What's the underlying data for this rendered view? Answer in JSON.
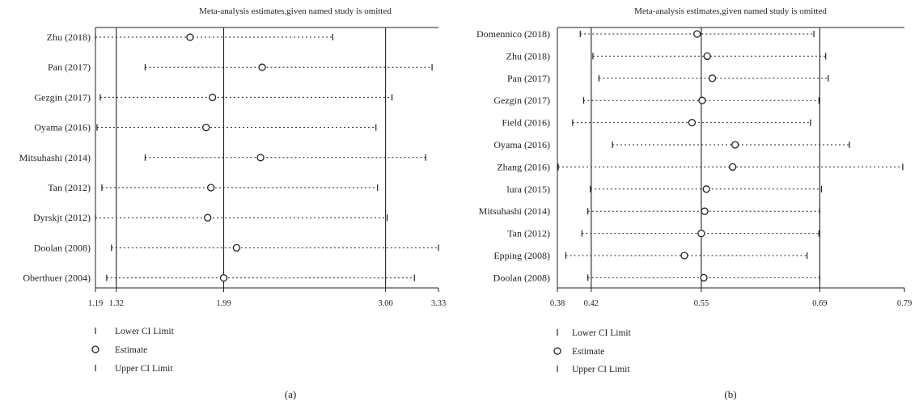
{
  "chart_data": [
    {
      "type": "forest",
      "panel_label": "(a)",
      "title": "Meta-analysis estimates,given named study is omitted",
      "xlim": [
        1.19,
        3.33
      ],
      "ticks": [
        "1.19",
        "1.32",
        "1.99",
        "3.00",
        "3.33"
      ],
      "tick_values": [
        1.19,
        1.32,
        1.99,
        3.0,
        3.33
      ],
      "reference_lines": [
        1.32,
        1.99,
        3.0
      ],
      "studies": [
        {
          "name": "Zhu (2018)",
          "lower": 1.19,
          "estimate": 1.78,
          "upper": 2.67
        },
        {
          "name": "Pan (2017)",
          "lower": 1.5,
          "estimate": 2.23,
          "upper": 3.29
        },
        {
          "name": "Gezgin (2017)",
          "lower": 1.22,
          "estimate": 1.92,
          "upper": 3.04
        },
        {
          "name": "Oyama (2016)",
          "lower": 1.2,
          "estimate": 1.88,
          "upper": 2.94
        },
        {
          "name": "Mitsuhashi (2014)",
          "lower": 1.5,
          "estimate": 2.22,
          "upper": 3.25
        },
        {
          "name": "Tan (2012)",
          "lower": 1.23,
          "estimate": 1.91,
          "upper": 2.95
        },
        {
          "name": "Dyrskjt (2012)",
          "lower": 1.19,
          "estimate": 1.89,
          "upper": 3.01
        },
        {
          "name": "Doolan (2008)",
          "lower": 1.29,
          "estimate": 2.07,
          "upper": 3.33
        },
        {
          "name": "Oberthuer (2004)",
          "lower": 1.26,
          "estimate": 1.99,
          "upper": 3.18
        }
      ],
      "legend": [
        "Lower CI Limit",
        "Estimate",
        "Upper CI Limit"
      ]
    },
    {
      "type": "forest",
      "panel_label": "(b)",
      "title": "Meta-analysis estimates,given named study is omitted",
      "xlim": [
        0.38,
        0.79
      ],
      "ticks": [
        "0.38",
        "0.42",
        "0.55",
        "0.69",
        "0.79"
      ],
      "tick_values": [
        0.38,
        0.42,
        0.55,
        0.69,
        0.79
      ],
      "reference_lines": [
        0.42,
        0.55,
        0.69
      ],
      "studies": [
        {
          "name": "Domennico (2018)",
          "lower": 0.407,
          "estimate": 0.545,
          "upper": 0.683
        },
        {
          "name": "Zhu (2018)",
          "lower": 0.422,
          "estimate": 0.557,
          "upper": 0.697
        },
        {
          "name": "Pan (2017)",
          "lower": 0.429,
          "estimate": 0.563,
          "upper": 0.7
        },
        {
          "name": "Gezgin (2017)",
          "lower": 0.411,
          "estimate": 0.551,
          "upper": 0.689
        },
        {
          "name": "Field (2016)",
          "lower": 0.398,
          "estimate": 0.539,
          "upper": 0.679
        },
        {
          "name": "Oyama (2016)",
          "lower": 0.445,
          "estimate": 0.59,
          "upper": 0.725
        },
        {
          "name": "Zhang (2016)",
          "lower": 0.381,
          "estimate": 0.587,
          "upper": 0.788
        },
        {
          "name": "lura (2015)",
          "lower": 0.419,
          "estimate": 0.556,
          "upper": 0.692
        },
        {
          "name": "Mitsuhashi (2014)",
          "lower": 0.416,
          "estimate": 0.554,
          "upper": 0.69
        },
        {
          "name": "Tan (2012)",
          "lower": 0.409,
          "estimate": 0.55,
          "upper": 0.689
        },
        {
          "name": "Epping (2008)",
          "lower": 0.39,
          "estimate": 0.53,
          "upper": 0.675
        },
        {
          "name": "Doolan (2008)",
          "lower": 0.416,
          "estimate": 0.553,
          "upper": 0.69
        }
      ],
      "legend": [
        "Lower CI Limit",
        "Estimate",
        "Upper CI Limit"
      ]
    }
  ]
}
